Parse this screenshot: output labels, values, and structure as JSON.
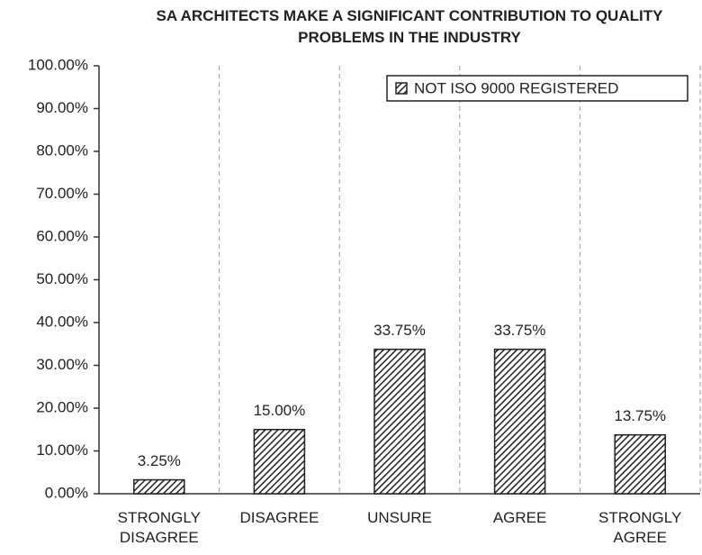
{
  "chart_data": {
    "type": "bar",
    "title": "SA ARCHITECTS MAKE A SIGNIFICANT CONTRIBUTION TO QUALITY PROBLEMS IN THE INDUSTRY",
    "categories": [
      "STRONGLY DISAGREE",
      "DISAGREE",
      "UNSURE",
      "AGREE",
      "STRONGLY AGREE"
    ],
    "series": [
      {
        "name": "NOT ISO 9000 REGISTERED",
        "color": "#222222",
        "values": [
          3.25,
          15.0,
          33.75,
          33.75,
          13.75
        ],
        "value_labels": [
          "3.25%",
          "15.00%",
          "33.75%",
          "33.75%",
          "13.75%"
        ]
      }
    ],
    "ylim": [
      0,
      100
    ],
    "yticks": [
      {
        "value": 0,
        "label": "0.00%"
      },
      {
        "value": 10,
        "label": "10.00%"
      },
      {
        "value": 20,
        "label": "20.00%"
      },
      {
        "value": 30,
        "label": "30.00%"
      },
      {
        "value": 40,
        "label": "40.00%"
      },
      {
        "value": 50,
        "label": "50.00%"
      },
      {
        "value": 60,
        "label": "60.00%"
      },
      {
        "value": 70,
        "label": "70.00%"
      },
      {
        "value": 80,
        "label": "80.00%"
      },
      {
        "value": 90,
        "label": "90.00%"
      },
      {
        "value": 100,
        "label": "100.00%"
      }
    ],
    "legend": "upper right"
  }
}
